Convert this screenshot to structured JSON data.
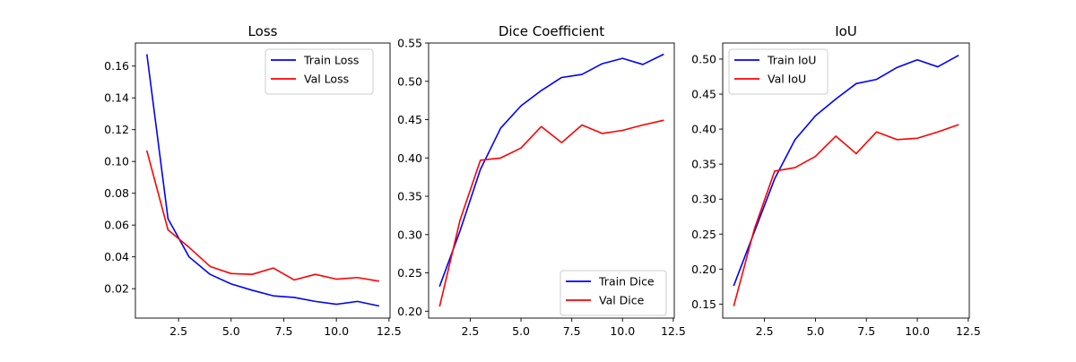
{
  "chart_data": [
    {
      "type": "line",
      "title": "Loss",
      "xlabel": "",
      "ylabel": "",
      "xlim": [
        0.45,
        12.55
      ],
      "ylim": [
        0.0015,
        0.1745
      ],
      "xticks": [
        2.5,
        5.0,
        7.5,
        10.0,
        12.5
      ],
      "xtick_labels": [
        "2.5",
        "5.0",
        "7.5",
        "10.0",
        "12.5"
      ],
      "yticks": [
        0.02,
        0.04,
        0.06,
        0.08,
        0.1,
        0.12,
        0.14,
        0.16
      ],
      "ytick_labels": [
        "0.02",
        "0.04",
        "0.06",
        "0.08",
        "0.10",
        "0.12",
        "0.14",
        "0.16"
      ],
      "legend_position": "upper right",
      "x": [
        1,
        2,
        3,
        4,
        5,
        6,
        7,
        8,
        9,
        10,
        11,
        12
      ],
      "series": [
        {
          "name": "Train Loss",
          "color": "#0000ff",
          "values": [
            0.167,
            0.064,
            0.04,
            0.029,
            0.023,
            0.019,
            0.0155,
            0.0145,
            0.012,
            0.0102,
            0.012,
            0.0092
          ]
        },
        {
          "name": "Val Loss",
          "color": "#ff0000",
          "values": [
            0.1065,
            0.057,
            0.046,
            0.034,
            0.0295,
            0.029,
            0.033,
            0.0255,
            0.029,
            0.026,
            0.027,
            0.0248
          ]
        }
      ]
    },
    {
      "type": "line",
      "title": "Dice Coefficient",
      "xlabel": "",
      "ylabel": "",
      "xlim": [
        0.45,
        12.55
      ],
      "ylim": [
        0.191,
        0.55
      ],
      "xticks": [
        2.5,
        5.0,
        7.5,
        10.0,
        12.5
      ],
      "xtick_labels": [
        "2.5",
        "5.0",
        "7.5",
        "10.0",
        "12.5"
      ],
      "yticks": [
        0.2,
        0.25,
        0.3,
        0.35,
        0.4,
        0.45,
        0.5,
        0.55
      ],
      "ytick_labels": [
        "0.20",
        "0.25",
        "0.30",
        "0.35",
        "0.40",
        "0.45",
        "0.50",
        "0.55"
      ],
      "legend_position": "lower right",
      "x": [
        1,
        2,
        3,
        4,
        5,
        6,
        7,
        8,
        9,
        10,
        11,
        12
      ],
      "series": [
        {
          "name": "Train Dice",
          "color": "#0000ff",
          "values": [
            0.233,
            0.305,
            0.385,
            0.439,
            0.468,
            0.488,
            0.505,
            0.509,
            0.523,
            0.53,
            0.522,
            0.535
          ]
        },
        {
          "name": "Val Dice",
          "color": "#ff0000",
          "values": [
            0.207,
            0.319,
            0.397,
            0.4,
            0.413,
            0.441,
            0.42,
            0.443,
            0.432,
            0.436,
            0.443,
            0.449
          ]
        }
      ]
    },
    {
      "type": "line",
      "title": "IoU",
      "xlabel": "",
      "ylabel": "",
      "xlim": [
        0.45,
        12.55
      ],
      "ylim": [
        0.13,
        0.523
      ],
      "xticks": [
        2.5,
        5.0,
        7.5,
        10.0,
        12.5
      ],
      "xtick_labels": [
        "2.5",
        "5.0",
        "7.5",
        "10.0",
        "12.5"
      ],
      "yticks": [
        0.15,
        0.2,
        0.25,
        0.3,
        0.35,
        0.4,
        0.45,
        0.5
      ],
      "ytick_labels": [
        "0.15",
        "0.20",
        "0.25",
        "0.30",
        "0.35",
        "0.40",
        "0.45",
        "0.50"
      ],
      "legend_position": "upper left",
      "x": [
        1,
        2,
        3,
        4,
        5,
        6,
        7,
        8,
        9,
        10,
        11,
        12
      ],
      "series": [
        {
          "name": "Train IoU",
          "color": "#0000ff",
          "values": [
            0.177,
            0.253,
            0.329,
            0.385,
            0.419,
            0.443,
            0.465,
            0.471,
            0.488,
            0.499,
            0.489,
            0.505
          ]
        },
        {
          "name": "Val IoU",
          "color": "#ff0000",
          "values": [
            0.148,
            0.257,
            0.34,
            0.345,
            0.361,
            0.39,
            0.365,
            0.396,
            0.385,
            0.387,
            0.396,
            0.406
          ]
        }
      ]
    }
  ]
}
